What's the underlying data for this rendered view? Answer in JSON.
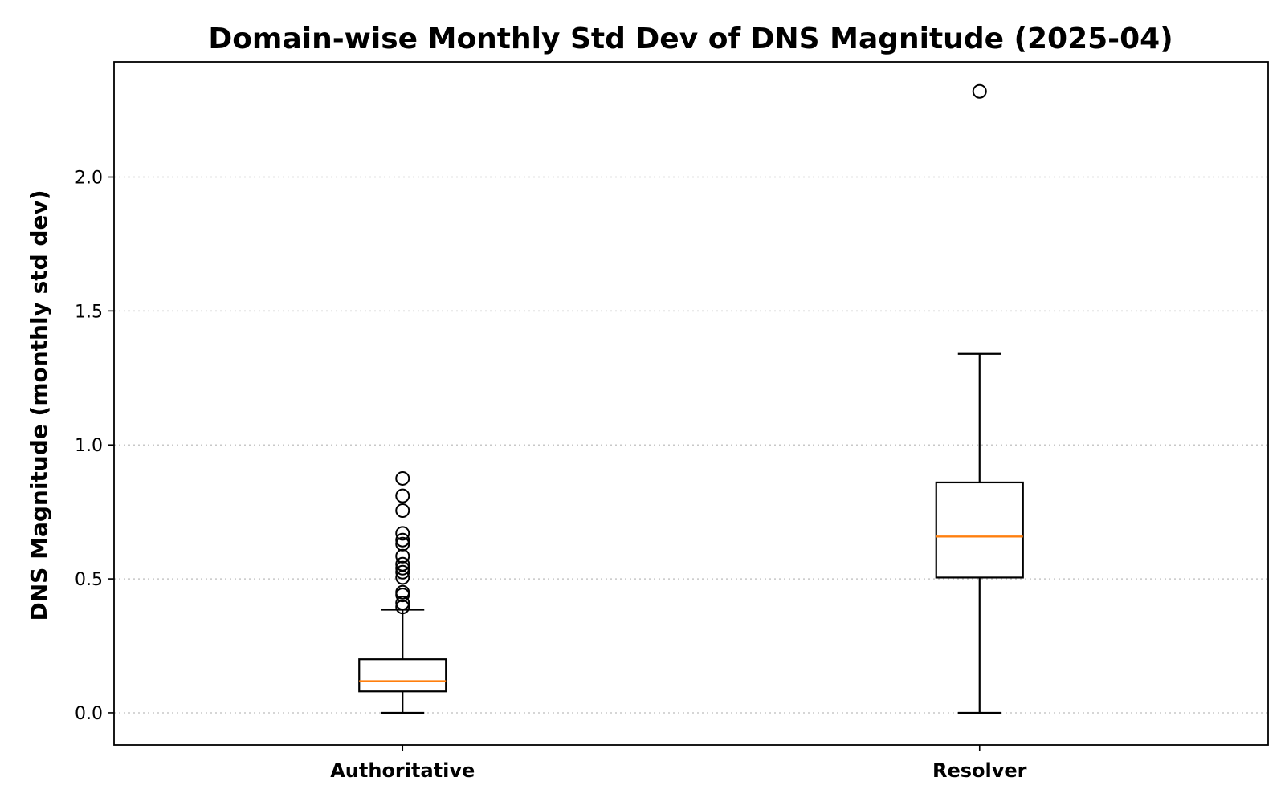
{
  "chart_data": {
    "type": "box",
    "title": "Domain-wise Monthly Std Dev of DNS Magnitude (2025-04)",
    "xlabel": "",
    "ylabel": "DNS Magnitude (monthly std dev)",
    "ylim": [
      -0.12,
      2.43
    ],
    "yticks": [
      0.0,
      0.5,
      1.0,
      1.5,
      2.0
    ],
    "ytick_labels": [
      "0.0",
      "0.5",
      "1.0",
      "1.5",
      "2.0"
    ],
    "grid": "y-dotted",
    "colors": {
      "median": "#ff7f0e",
      "box": "#000000",
      "grid": "#c8c8c8"
    },
    "categories": [
      "Authoritative",
      "Resolver"
    ],
    "boxes": [
      {
        "category": "Authoritative",
        "whisker_low": 0.0,
        "q1": 0.08,
        "median": 0.118,
        "q3": 0.2,
        "whisker_high": 0.385,
        "fliers": [
          0.875,
          0.81,
          0.755,
          0.67,
          0.645,
          0.63,
          0.585,
          0.555,
          0.54,
          0.525,
          0.505,
          0.45,
          0.44,
          0.41,
          0.395
        ]
      },
      {
        "category": "Resolver",
        "whisker_low": 0.0,
        "q1": 0.505,
        "median": 0.658,
        "q3": 0.86,
        "whisker_high": 1.34,
        "fliers": [
          2.32
        ]
      }
    ]
  }
}
